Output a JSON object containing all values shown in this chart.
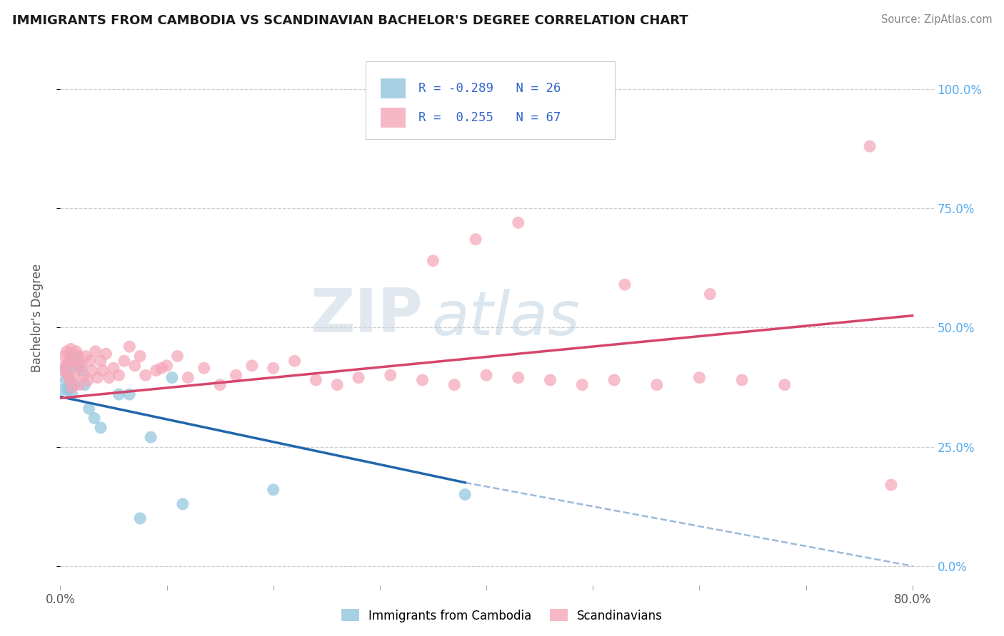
{
  "title": "IMMIGRANTS FROM CAMBODIA VS SCANDINAVIAN BACHELOR'S DEGREE CORRELATION CHART",
  "source_text": "Source: ZipAtlas.com",
  "ylabel": "Bachelor's Degree",
  "xlim_min": 0.0,
  "xlim_max": 0.82,
  "ylim_min": -0.04,
  "ylim_max": 1.08,
  "ytick_vals": [
    0.0,
    0.25,
    0.5,
    0.75,
    1.0
  ],
  "ytick_labels": [
    "0.0%",
    "25.0%",
    "50.0%",
    "75.0%",
    "100.0%"
  ],
  "xtick_vals": [
    0.0,
    0.1,
    0.2,
    0.3,
    0.4,
    0.5,
    0.6,
    0.7,
    0.8
  ],
  "xtick_labels": [
    "0.0%",
    "",
    "",
    "",
    "",
    "",
    "",
    "",
    "80.0%"
  ],
  "legend_label1": "Immigrants from Cambodia",
  "legend_label2": "Scandinavians",
  "r1": "-0.289",
  "n1": "26",
  "r2": "0.255",
  "n2": "67",
  "blue_color": "#92c5de",
  "pink_color": "#f4a6b8",
  "line_blue": "#2166ac",
  "line_pink": "#d6456a",
  "watermark_zip": "ZIP",
  "watermark_atlas": "atlas",
  "blue_x": [
    0.003,
    0.004,
    0.005,
    0.006,
    0.007,
    0.008,
    0.009,
    0.01,
    0.011,
    0.012,
    0.013,
    0.015,
    0.017,
    0.02,
    0.023,
    0.027,
    0.032,
    0.038,
    0.055,
    0.065,
    0.075,
    0.085,
    0.105,
    0.115,
    0.2,
    0.38
  ],
  "blue_y": [
    0.37,
    0.41,
    0.39,
    0.42,
    0.37,
    0.4,
    0.38,
    0.44,
    0.36,
    0.42,
    0.38,
    0.435,
    0.425,
    0.41,
    0.38,
    0.33,
    0.31,
    0.29,
    0.36,
    0.36,
    0.1,
    0.27,
    0.395,
    0.13,
    0.16,
    0.15
  ],
  "pink_x": [
    0.003,
    0.004,
    0.005,
    0.006,
    0.007,
    0.008,
    0.009,
    0.01,
    0.011,
    0.012,
    0.013,
    0.015,
    0.016,
    0.017,
    0.018,
    0.02,
    0.022,
    0.024,
    0.026,
    0.028,
    0.03,
    0.033,
    0.035,
    0.038,
    0.04,
    0.043,
    0.046,
    0.05,
    0.055,
    0.06,
    0.065,
    0.07,
    0.075,
    0.08,
    0.09,
    0.095,
    0.1,
    0.11,
    0.12,
    0.135,
    0.15,
    0.165,
    0.18,
    0.2,
    0.22,
    0.24,
    0.26,
    0.28,
    0.31,
    0.34,
    0.37,
    0.4,
    0.43,
    0.46,
    0.49,
    0.52,
    0.56,
    0.6,
    0.64,
    0.68,
    0.35,
    0.39,
    0.43,
    0.53,
    0.61,
    0.76,
    0.78
  ],
  "pink_y": [
    0.41,
    0.44,
    0.42,
    0.45,
    0.4,
    0.43,
    0.39,
    0.455,
    0.375,
    0.43,
    0.4,
    0.45,
    0.42,
    0.44,
    0.38,
    0.42,
    0.4,
    0.44,
    0.39,
    0.43,
    0.41,
    0.45,
    0.395,
    0.43,
    0.41,
    0.445,
    0.395,
    0.415,
    0.4,
    0.43,
    0.46,
    0.42,
    0.44,
    0.4,
    0.41,
    0.415,
    0.42,
    0.44,
    0.395,
    0.415,
    0.38,
    0.4,
    0.42,
    0.415,
    0.43,
    0.39,
    0.38,
    0.395,
    0.4,
    0.39,
    0.38,
    0.4,
    0.395,
    0.39,
    0.38,
    0.39,
    0.38,
    0.395,
    0.39,
    0.38,
    0.64,
    0.685,
    0.72,
    0.59,
    0.57,
    0.88,
    0.17
  ],
  "blue_line_x0": 0.0,
  "blue_line_y0": 0.355,
  "blue_line_x1": 0.38,
  "blue_line_y1": 0.175,
  "blue_line_dash_x1": 0.8,
  "blue_line_dash_y1": 0.0,
  "pink_line_x0": 0.0,
  "pink_line_y0": 0.352,
  "pink_line_x1": 0.8,
  "pink_line_y1": 0.525
}
